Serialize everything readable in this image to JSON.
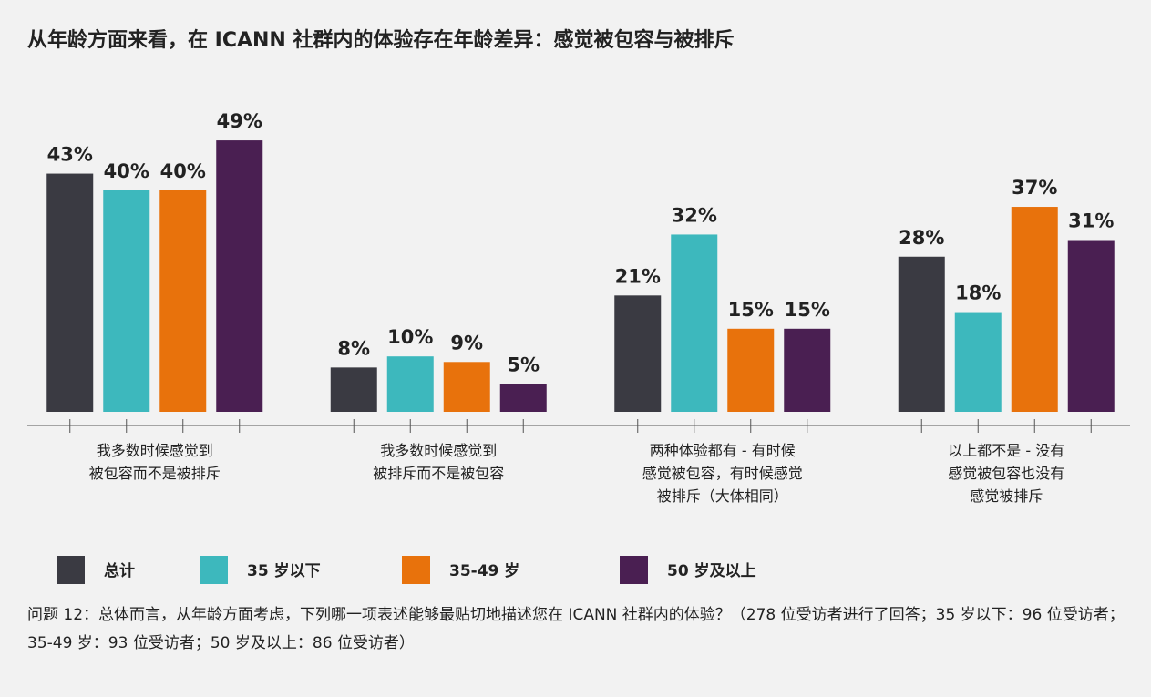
{
  "chart_data": {
    "type": "bar",
    "title": "从年龄方面来看，在 ICANN 社群内的体验存在年龄差异：感觉被包容与被排斥",
    "categories": [
      "我多数时候感觉到\n被包容而不是被排斥",
      "我多数时候感觉到\n被排斥而不是被包容",
      "两种体验都有 - 有时候\n感觉被包容，有时候感觉\n被排斥（大体相同）",
      "以上都不是 - 没有\n感觉被包容也没有\n感觉被排斥"
    ],
    "series": [
      {
        "name": "总计",
        "color": "#3a3a42",
        "values": [
          43,
          8,
          21,
          28
        ],
        "value_labels": [
          "43%",
          "8%",
          "21%",
          "28%"
        ]
      },
      {
        "name": "35 岁以下",
        "color": "#3db8bd",
        "values": [
          40,
          10,
          32,
          18
        ],
        "value_labels": [
          "40%",
          "10%",
          "32%",
          "18%"
        ]
      },
      {
        "name": "35-49 岁",
        "color": "#e8720c",
        "values": [
          40,
          9,
          15,
          37
        ],
        "value_labels": [
          "40%",
          "9%",
          "15%",
          "37%"
        ]
      },
      {
        "name": "50 岁及以上",
        "color": "#4a1f52",
        "values": [
          49,
          5,
          15,
          31
        ],
        "value_labels": [
          "49%",
          "5%",
          "15%",
          "31%"
        ]
      }
    ],
    "ylim": [
      0,
      50
    ],
    "note": "问题 12：总体而言，从年龄方面考虑，下列哪一项表述能够最贴切地描述您在 ICANN 社群内的体验？（278 位受访者进行了回答；35 岁以下：96 位受访者；35-49 岁：93 位受访者；50 岁及以上：86 位受访者）"
  }
}
